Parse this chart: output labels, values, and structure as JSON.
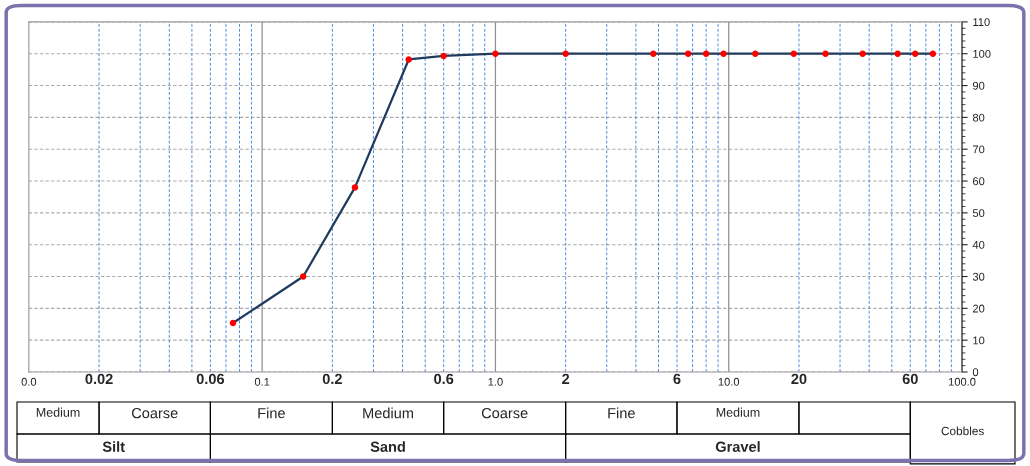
{
  "chart_data": {
    "type": "line",
    "x": [
      0.075,
      0.15,
      0.25,
      0.425,
      0.6,
      1.0,
      2,
      4.75,
      6.7,
      8,
      9.5,
      13,
      19,
      26,
      37.5,
      53,
      63,
      75
    ],
    "series": [
      {
        "color": "#1f3a5f",
        "marker": "none",
        "values": [
          15.4,
          30,
          58,
          98.2,
          99.3,
          100,
          100,
          100,
          100,
          100,
          100,
          100,
          100,
          100,
          100,
          100,
          100,
          100
        ]
      },
      {
        "type": "scatter",
        "color": "#ff0000",
        "marker": "circle",
        "values": [
          15.4,
          30,
          58,
          98.2,
          99.3,
          100,
          100,
          100,
          100,
          100,
          100,
          100,
          100,
          100,
          100,
          100,
          100,
          100
        ]
      }
    ],
    "log": "x",
    "xlim": [
      0.01,
      100
    ],
    "xticks": [
      {
        "value": 0.01,
        "label": "0.0"
      },
      {
        "value": 0.02,
        "label": "0.02"
      },
      {
        "value": 0.06,
        "label": "0.06"
      },
      {
        "value": 0.1,
        "label": "0.1"
      },
      {
        "value": 0.2,
        "label": "0.2"
      },
      {
        "value": 0.6,
        "label": "0.6"
      },
      {
        "value": 1,
        "label": "1.0"
      },
      2,
      6,
      {
        "value": 10,
        "label": "10.0"
      },
      20,
      60,
      {
        "value": 100,
        "label": "100.0"
      }
    ],
    "ylim": [
      0,
      110
    ],
    "yticks": [
      0,
      10,
      20,
      30,
      40,
      50,
      60,
      70,
      80,
      90,
      100,
      110
    ],
    "grid": true,
    "annotations": [
      "Medium",
      "Coarse",
      "Fine",
      "Medium",
      "Coarse",
      "Fine",
      "Medium",
      "Cobbles",
      "Silt",
      "Sand",
      "Gravel"
    ]
  }
}
